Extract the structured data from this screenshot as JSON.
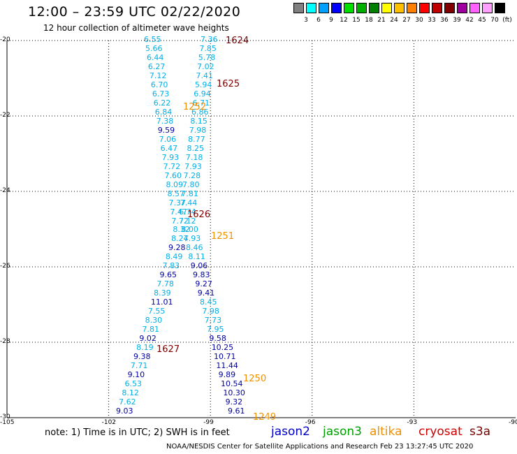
{
  "title": "12:00 – 23:59 UTC 02/22/2020",
  "subtitle": "12 hour collection of altimeter wave heights",
  "scale": {
    "unit": "(ft)",
    "steps": [
      {
        "label": "3",
        "color": "#808080"
      },
      {
        "label": "6",
        "color": "#00ffff"
      },
      {
        "label": "9",
        "color": "#00a0ff"
      },
      {
        "label": "12",
        "color": "#0000ff"
      },
      {
        "label": "15",
        "color": "#00e000"
      },
      {
        "label": "18",
        "color": "#00b000"
      },
      {
        "label": "21",
        "color": "#008000"
      },
      {
        "label": "24",
        "color": "#ffff00"
      },
      {
        "label": "27",
        "color": "#ffc000"
      },
      {
        "label": "30",
        "color": "#ff8000"
      },
      {
        "label": "33",
        "color": "#ff0000"
      },
      {
        "label": "36",
        "color": "#c00000"
      },
      {
        "label": "39",
        "color": "#800000"
      },
      {
        "label": "42",
        "color": "#a000a0"
      },
      {
        "label": "45",
        "color": "#ff60ff"
      },
      {
        "label": "70",
        "color": "#ffa0ff"
      },
      {
        "label": "",
        "color": "#000000"
      }
    ]
  },
  "axes": {
    "lat_ticks": [
      "-20",
      "-22",
      "-24",
      "-26",
      "-28",
      "-30"
    ],
    "lon_ticks": [
      "-105",
      "-102",
      "-99",
      "-96",
      "-93",
      "-90"
    ]
  },
  "colors": {
    "cyan": "#00b0e8",
    "blue": "#0000a0",
    "maroon": "#7a0000",
    "orange": "#f09000"
  },
  "track_left": [
    {
      "v": "6.55",
      "c": "cyan"
    },
    {
      "v": "5.66",
      "c": "cyan"
    },
    {
      "v": "6.44",
      "c": "cyan"
    },
    {
      "v": "6.27",
      "c": "cyan"
    },
    {
      "v": "7.12",
      "c": "cyan"
    },
    {
      "v": "6.70",
      "c": "cyan"
    },
    {
      "v": "6.73",
      "c": "cyan"
    },
    {
      "v": "6.22",
      "c": "cyan"
    },
    {
      "v": "6.84",
      "c": "cyan"
    },
    {
      "v": "7.38",
      "c": "cyan"
    },
    {
      "v": "9.59",
      "c": "blue"
    },
    {
      "v": "7.06",
      "c": "cyan"
    },
    {
      "v": "6.47",
      "c": "cyan"
    },
    {
      "v": "7.93",
      "c": "cyan"
    },
    {
      "v": "7.72",
      "c": "cyan"
    },
    {
      "v": "7.60",
      "c": "cyan"
    },
    {
      "v": "8.09",
      "c": "cyan"
    },
    {
      "v": "8.57",
      "c": "cyan"
    },
    {
      "v": "7.37",
      "c": "cyan"
    },
    {
      "v": "7.47",
      "c": "cyan"
    },
    {
      "v": "7.72",
      "c": "cyan"
    },
    {
      "v": "8.32",
      "c": "cyan"
    },
    {
      "v": "8.24",
      "c": "cyan"
    },
    {
      "v": "9.28",
      "c": "blue"
    },
    {
      "v": "8.49",
      "c": "cyan"
    },
    {
      "v": "7.83",
      "c": "cyan"
    },
    {
      "v": "9.65",
      "c": "blue"
    },
    {
      "v": "7.78",
      "c": "cyan"
    },
    {
      "v": "8.39",
      "c": "cyan"
    },
    {
      "v": "11.01",
      "c": "blue"
    },
    {
      "v": "7.55",
      "c": "cyan"
    },
    {
      "v": "8.30",
      "c": "cyan"
    },
    {
      "v": "7.81",
      "c": "cyan"
    },
    {
      "v": "9.02",
      "c": "blue"
    },
    {
      "v": "8.19",
      "c": "cyan"
    },
    {
      "v": "9.38",
      "c": "blue"
    },
    {
      "v": "7.71",
      "c": "cyan"
    },
    {
      "v": "9.10",
      "c": "blue"
    },
    {
      "v": "6.53",
      "c": "cyan"
    },
    {
      "v": "8.12",
      "c": "cyan"
    },
    {
      "v": "7.62",
      "c": "cyan"
    },
    {
      "v": "9.03",
      "c": "blue"
    }
  ],
  "track_right": [
    {
      "v": "7.36",
      "c": "cyan"
    },
    {
      "v": "7.85",
      "c": "cyan"
    },
    {
      "v": "5.78",
      "c": "cyan"
    },
    {
      "v": "7.02",
      "c": "cyan"
    },
    {
      "v": "7.41",
      "c": "cyan"
    },
    {
      "v": "5.94",
      "c": "cyan"
    },
    {
      "v": "6.94",
      "c": "cyan"
    },
    {
      "v": "6.71",
      "c": "cyan"
    },
    {
      "v": "6.86",
      "c": "cyan"
    },
    {
      "v": "8.15",
      "c": "cyan"
    },
    {
      "v": "7.98",
      "c": "cyan"
    },
    {
      "v": "8.77",
      "c": "cyan"
    },
    {
      "v": "8.25",
      "c": "cyan"
    },
    {
      "v": "7.18",
      "c": "cyan"
    },
    {
      "v": "7.93",
      "c": "cyan"
    },
    {
      "v": "7.28",
      "c": "cyan"
    },
    {
      "v": "7.80",
      "c": "cyan"
    },
    {
      "v": "7.81",
      "c": "cyan"
    },
    {
      "v": "7.44",
      "c": "cyan"
    },
    {
      "v": "6.74",
      "c": "cyan"
    },
    {
      "v": "7.12",
      "c": "cyan"
    },
    {
      "v": "8.00",
      "c": "cyan"
    },
    {
      "v": "7.93",
      "c": "cyan"
    },
    {
      "v": "8.46",
      "c": "cyan"
    },
    {
      "v": "8.11",
      "c": "cyan"
    },
    {
      "v": "9.06",
      "c": "blue"
    },
    {
      "v": "9.83",
      "c": "blue"
    },
    {
      "v": "9.27",
      "c": "blue"
    },
    {
      "v": "9.41",
      "c": "blue"
    },
    {
      "v": "8.45",
      "c": "cyan"
    },
    {
      "v": "7.98",
      "c": "cyan"
    },
    {
      "v": "7.73",
      "c": "cyan"
    },
    {
      "v": "7.95",
      "c": "cyan"
    },
    {
      "v": "9.58",
      "c": "blue"
    },
    {
      "v": "10.25",
      "c": "blue"
    },
    {
      "v": "10.71",
      "c": "blue"
    },
    {
      "v": "11.44",
      "c": "blue"
    },
    {
      "v": "9.89",
      "c": "blue"
    },
    {
      "v": "10.54",
      "c": "blue"
    },
    {
      "v": "10.30",
      "c": "blue"
    },
    {
      "v": "9.32",
      "c": "blue"
    },
    {
      "v": "9.61",
      "c": "blue"
    }
  ],
  "passes": [
    {
      "t": "1624",
      "c": "maroon"
    },
    {
      "t": "1625",
      "c": "maroon"
    },
    {
      "t": "1252",
      "c": "orange"
    },
    {
      "t": "1626",
      "c": "maroon"
    },
    {
      "t": "1251",
      "c": "orange"
    },
    {
      "t": "1627",
      "c": "maroon"
    },
    {
      "t": "1250",
      "c": "orange"
    },
    {
      "t": "1249",
      "c": "orange"
    }
  ],
  "note": "note:  1) Time is in UTC; 2) SWH is in feet",
  "satellites": [
    {
      "name": "jason2",
      "color": "#0000c8"
    },
    {
      "name": "jason3",
      "color": "#00a000"
    },
    {
      "name": "altika",
      "color": "#f09000"
    },
    {
      "name": "cryosat",
      "color": "#d00000"
    },
    {
      "name": "s3a",
      "color": "#7a0000"
    }
  ],
  "credit": "NOAA/NESDIS Center for Satellite Applications and Research    Feb 23 13:27:45 UTC 2020"
}
